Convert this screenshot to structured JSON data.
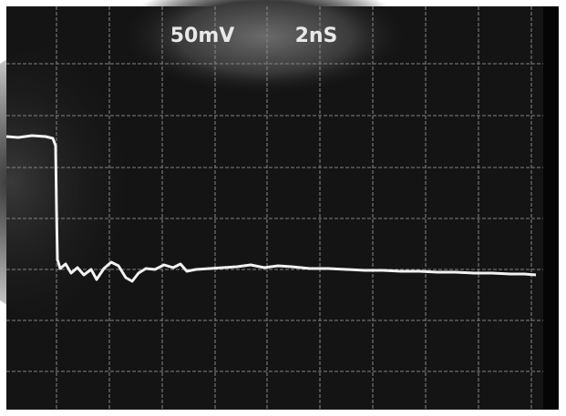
{
  "labels": {
    "volts_per_div": "50mV",
    "time_per_div": "2nS"
  }
}
